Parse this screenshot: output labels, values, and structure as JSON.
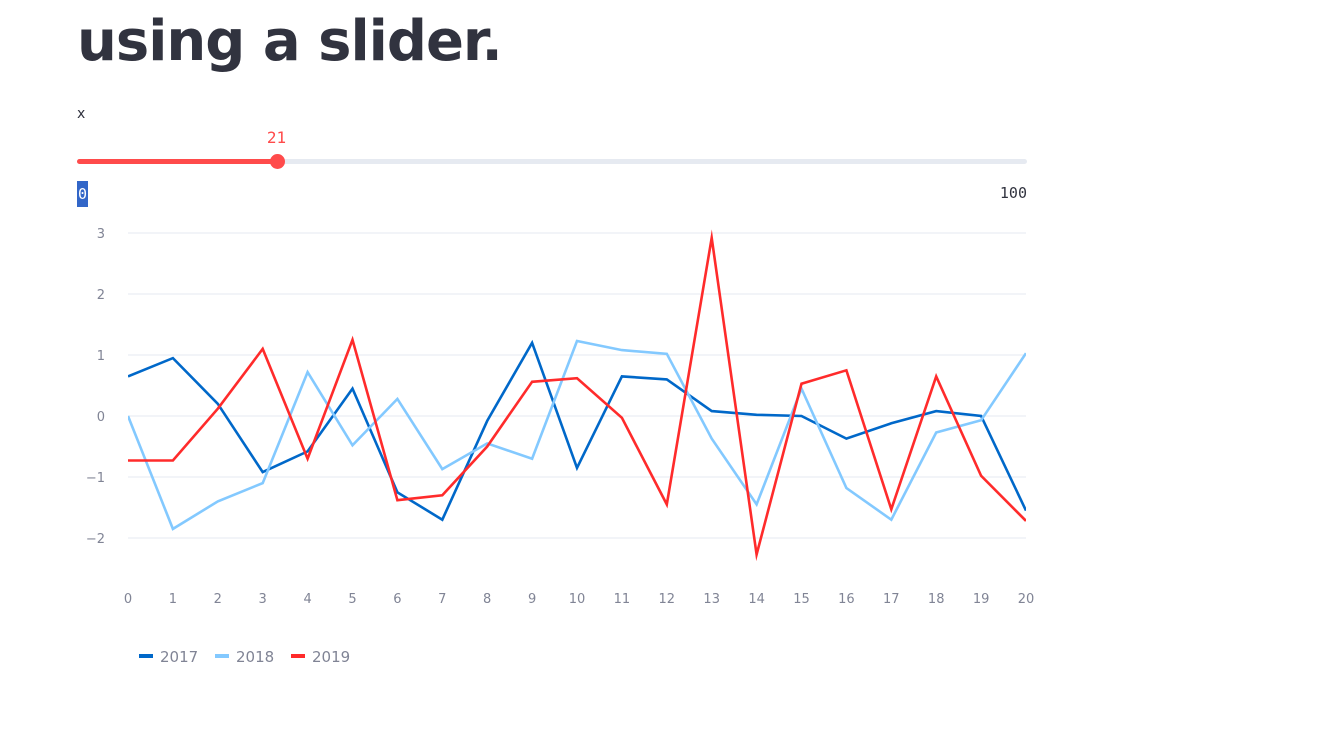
{
  "page": {
    "title": "using a slider."
  },
  "slider": {
    "label": "x",
    "min": 0,
    "max": 100,
    "value": 21,
    "min_label": "0",
    "max_label": "100",
    "color": "#ff4b4b"
  },
  "chart_data": {
    "type": "line",
    "x": [
      0,
      1,
      2,
      3,
      4,
      5,
      6,
      7,
      8,
      9,
      10,
      11,
      12,
      13,
      14,
      15,
      16,
      17,
      18,
      19,
      20
    ],
    "xlim": [
      0,
      20
    ],
    "ylim": [
      -2.5,
      3
    ],
    "yticks": [
      -2,
      -1,
      0,
      1,
      2,
      3
    ],
    "ytick_labels": [
      "−2",
      "−1",
      "0",
      "1",
      "2",
      "3"
    ],
    "grid": true,
    "legend_position": "bottom-left",
    "series": [
      {
        "name": "2017",
        "color": "#0068c9",
        "values": [
          0.65,
          0.95,
          0.2,
          -0.92,
          -0.58,
          0.45,
          -1.25,
          -1.7,
          -0.08,
          1.2,
          -0.85,
          0.65,
          0.6,
          0.08,
          0.02,
          0.0,
          -0.37,
          -0.12,
          0.08,
          0.0,
          -1.55
        ]
      },
      {
        "name": "2018",
        "color": "#83c9ff",
        "values": [
          0.0,
          -1.85,
          -1.4,
          -1.1,
          0.72,
          -0.48,
          0.28,
          -0.87,
          -0.45,
          -0.7,
          1.23,
          1.08,
          1.02,
          -0.37,
          -1.45,
          0.45,
          -1.18,
          -1.7,
          -0.27,
          -0.07,
          1.03
        ]
      },
      {
        "name": "2019",
        "color": "#ff2b2b",
        "values": [
          -0.73,
          -0.73,
          0.12,
          1.1,
          -0.7,
          1.25,
          -1.38,
          -1.3,
          -0.5,
          0.56,
          0.62,
          -0.03,
          -1.45,
          2.92,
          -2.27,
          0.53,
          0.75,
          -1.53,
          0.65,
          -0.98,
          -1.72
        ]
      }
    ]
  }
}
